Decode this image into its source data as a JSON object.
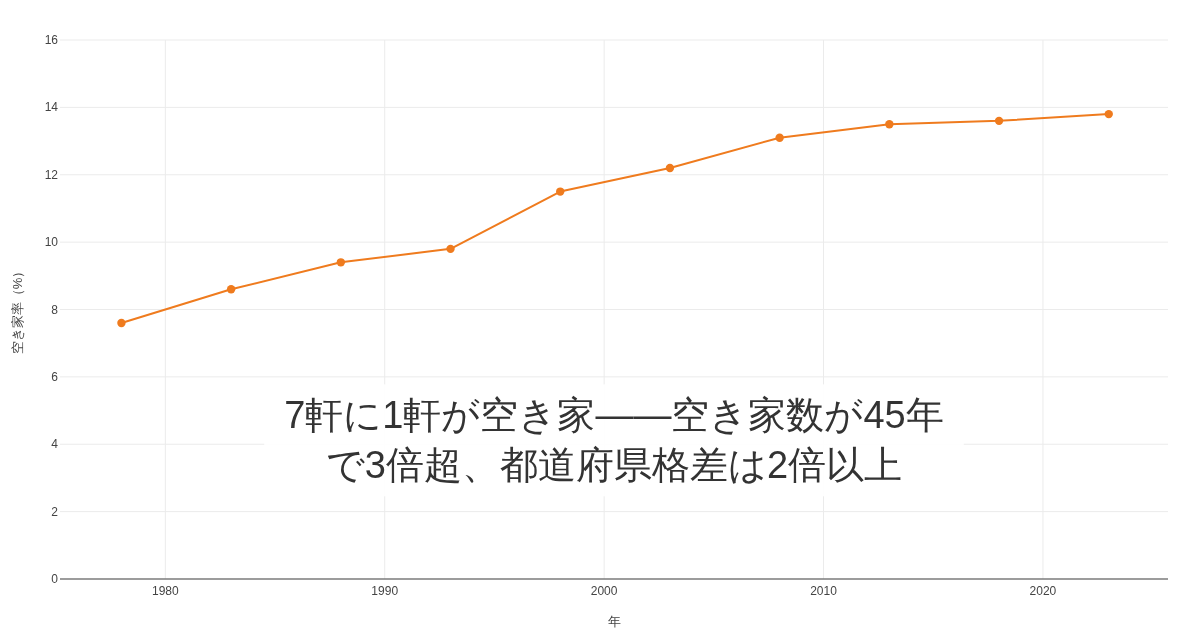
{
  "chart_data": {
    "type": "line",
    "title": "7軒に1軒が空き家——空き家数が45年で3倍超、都道府県格差は2倍以上",
    "xlabel": "年",
    "ylabel": "空き家率（%）",
    "x": [
      1978,
      1983,
      1988,
      1993,
      1998,
      2003,
      2008,
      2013,
      2018,
      2023
    ],
    "series": [
      {
        "color": "#ef7b1e",
        "values": [
          7.6,
          8.6,
          9.4,
          9.8,
          11.5,
          12.2,
          13.1,
          13.5,
          13.6,
          13.8
        ]
      }
    ],
    "xlim": [
      1975.2,
      2025.7
    ],
    "xticks": [
      1980,
      1990,
      2000,
      2010,
      2020
    ],
    "ylim": [
      0,
      16
    ],
    "yticks": [
      0,
      2,
      4,
      6,
      8,
      10,
      12,
      14,
      16
    ],
    "grid": true,
    "marker": "circle",
    "line_style": "solid"
  }
}
